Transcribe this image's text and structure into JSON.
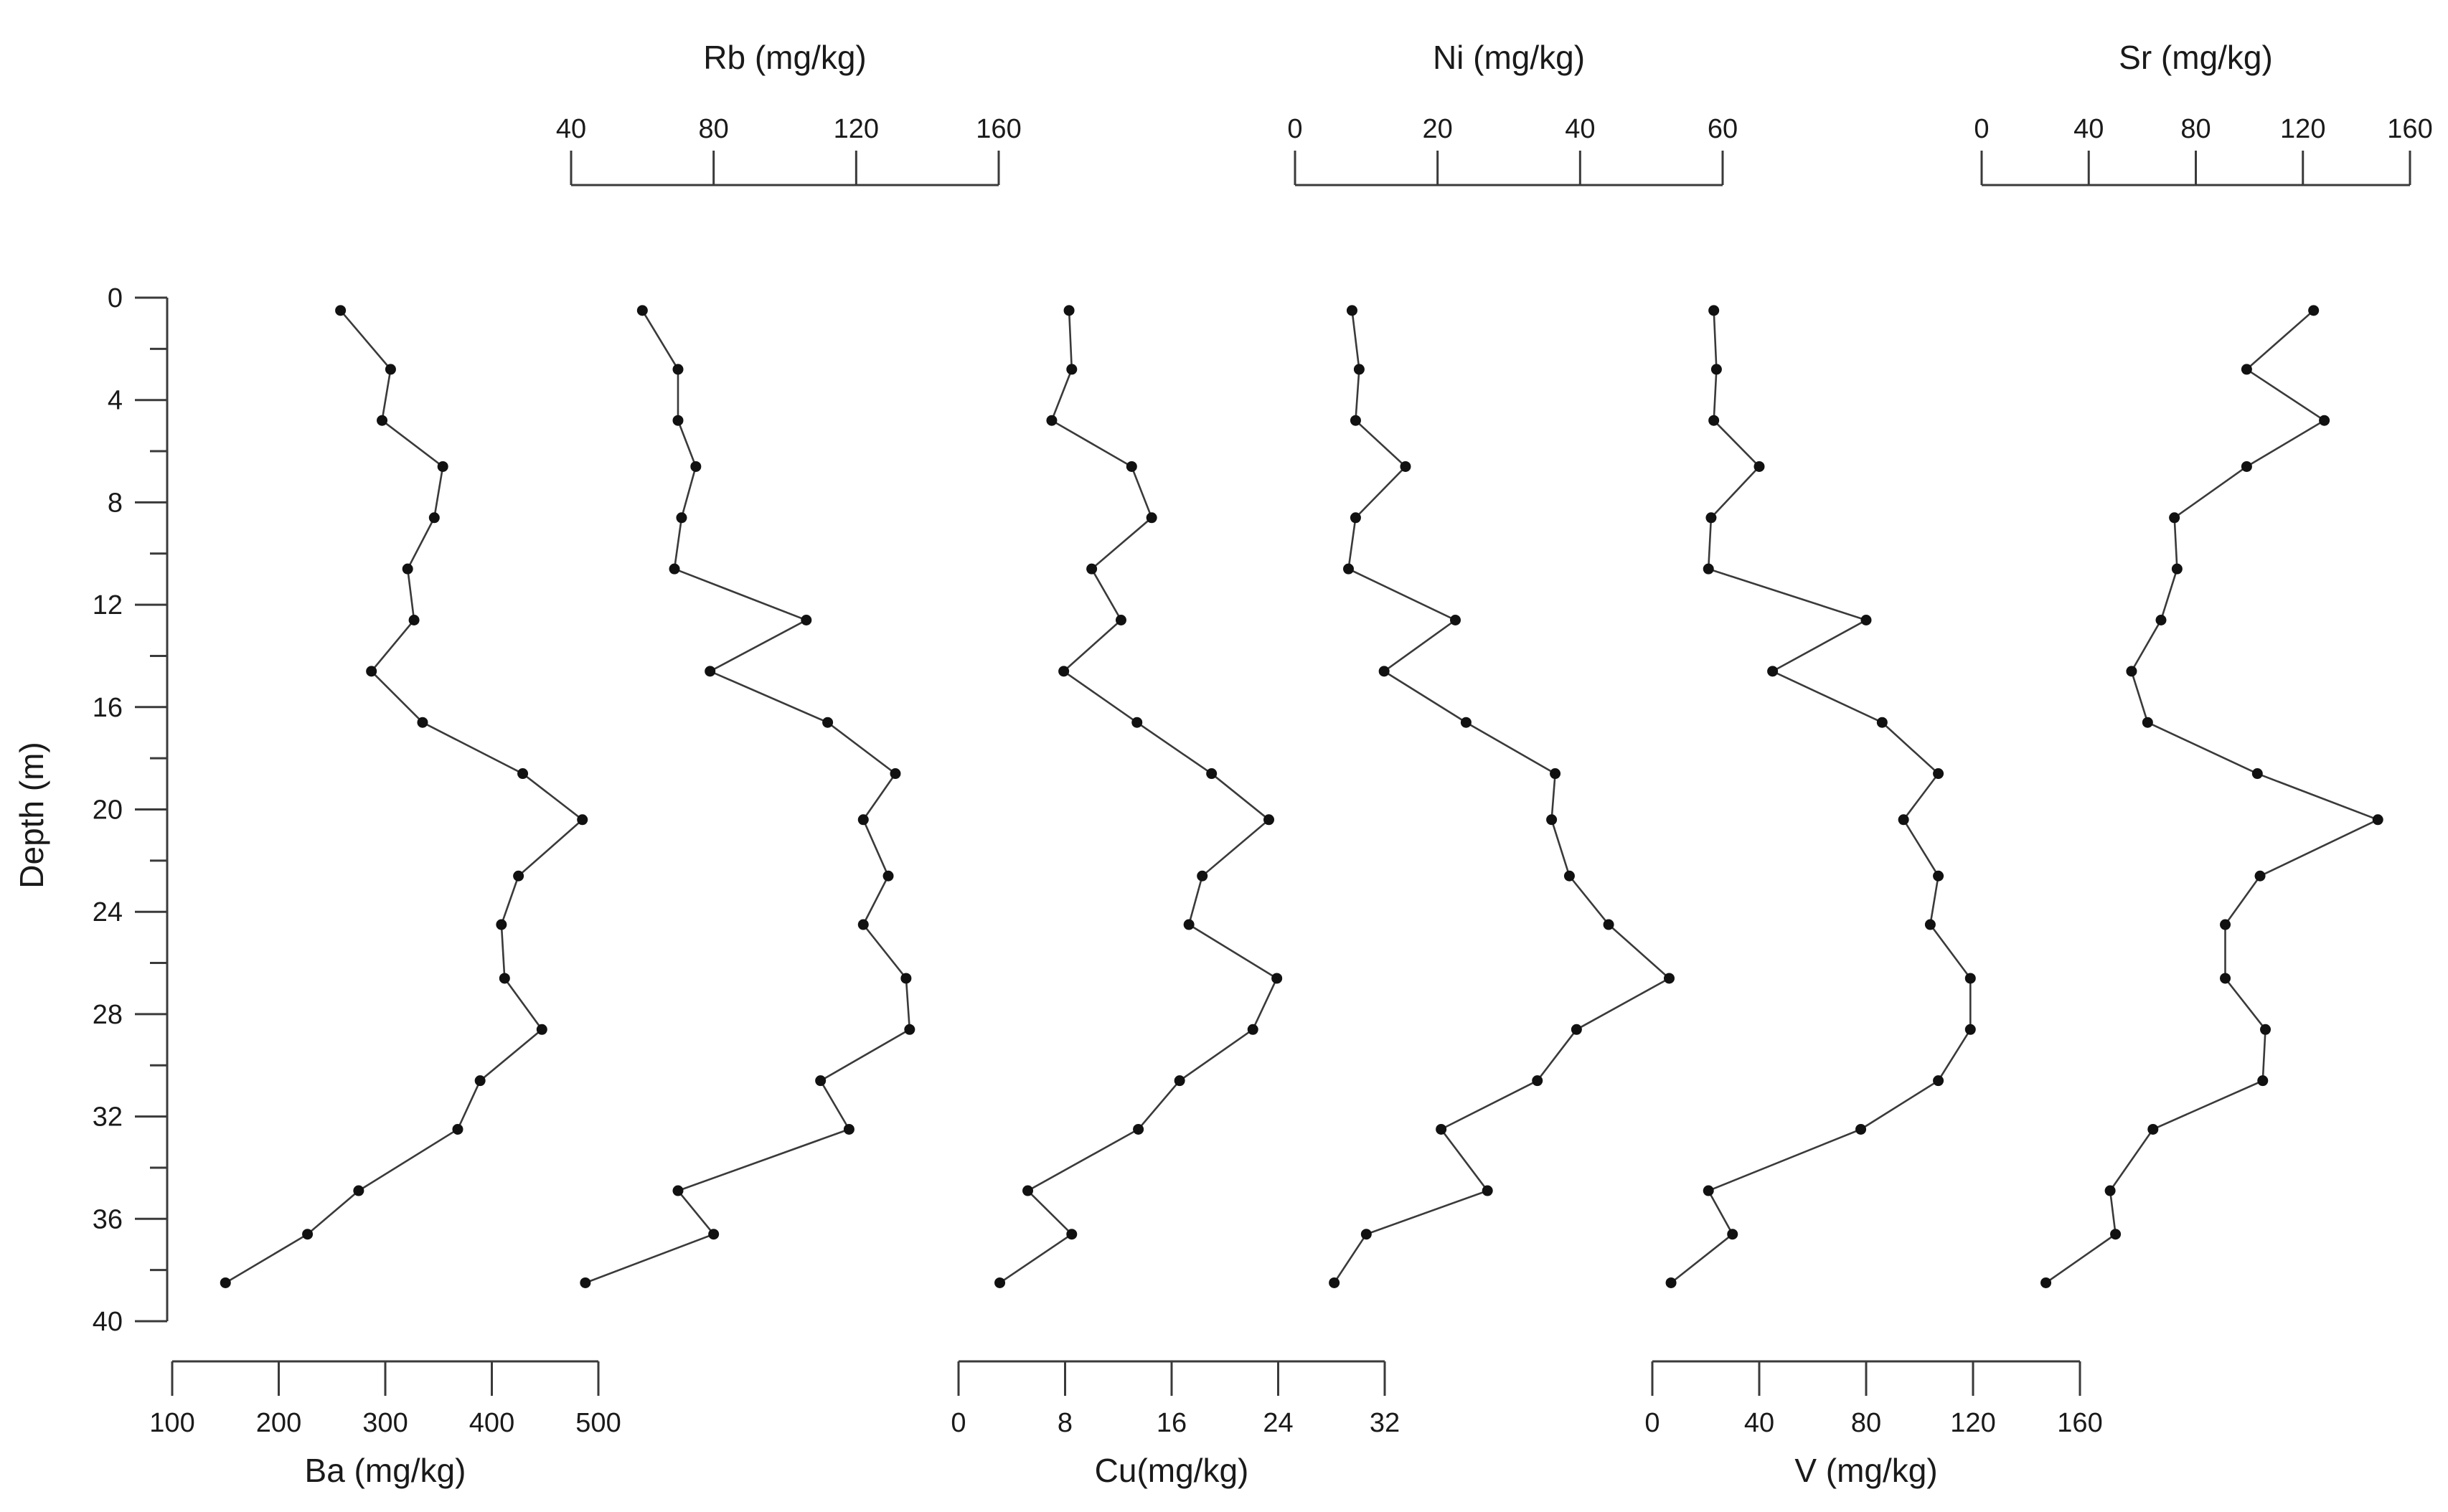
{
  "chart_data": {
    "type": "line",
    "depth_axis": {
      "label": "Depth (m)",
      "range": [
        0,
        40
      ],
      "ticks": [
        0,
        4,
        8,
        12,
        16,
        20,
        24,
        28,
        32,
        36,
        40
      ],
      "inverted": true
    },
    "depths": [
      0.5,
      2.8,
      4.8,
      6.6,
      8.6,
      10.6,
      12.6,
      14.6,
      16.6,
      18.6,
      20.4,
      22.6,
      24.5,
      26.6,
      28.6,
      30.6,
      32.5,
      34.9,
      36.6,
      38.5
    ],
    "panels": [
      {
        "name": "Ba",
        "label": "Ba (mg/kg)",
        "axis_position": "bottom",
        "range": [
          100,
          500
        ],
        "ticks": [
          100,
          200,
          300,
          400,
          500
        ],
        "values": [
          258,
          305,
          297,
          354,
          346,
          321,
          327,
          287,
          335,
          429,
          485,
          425,
          409,
          412,
          447,
          389,
          368,
          275,
          227,
          150
        ]
      },
      {
        "name": "Rb",
        "label": "Rb (mg/kg)",
        "axis_position": "top",
        "range": [
          40,
          160
        ],
        "ticks": [
          40,
          80,
          120,
          160
        ],
        "values": [
          60,
          70,
          70,
          75,
          71,
          69,
          106,
          79,
          112,
          131,
          122,
          129,
          122,
          134,
          135,
          110,
          118,
          70,
          80,
          44
        ]
      },
      {
        "name": "Cu",
        "label": "Cu(mg/kg)",
        "axis_position": "bottom",
        "range": [
          0,
          32
        ],
        "ticks": [
          0,
          8,
          16,
          24,
          32
        ],
        "values": [
          8.3,
          8.5,
          7.0,
          13.0,
          14.5,
          10.0,
          12.2,
          7.9,
          13.4,
          19.0,
          23.3,
          18.3,
          17.3,
          23.9,
          22.1,
          16.6,
          13.5,
          5.2,
          8.5,
          3.1
        ]
      },
      {
        "name": "Ni",
        "label": "Ni (mg/kg)",
        "axis_position": "top",
        "range": [
          0,
          60
        ],
        "ticks": [
          0,
          20,
          40,
          60
        ],
        "values": [
          8,
          9,
          8.5,
          15.5,
          8.5,
          7.5,
          22.5,
          12.5,
          24,
          36.5,
          36,
          38.5,
          44,
          52.5,
          39.5,
          34,
          20.5,
          27,
          10,
          5.5
        ]
      },
      {
        "name": "V",
        "label": "V (mg/kg)",
        "axis_position": "bottom",
        "range": [
          0,
          160
        ],
        "ticks": [
          0,
          40,
          80,
          120,
          160
        ],
        "values": [
          23,
          24,
          23,
          40,
          22,
          21,
          80,
          45,
          86,
          107,
          94,
          107,
          104,
          119,
          119,
          107,
          78,
          21,
          30,
          7
        ]
      },
      {
        "name": "Sr",
        "label": "Sr (mg/kg)",
        "axis_position": "top",
        "range": [
          0,
          160
        ],
        "ticks": [
          0,
          40,
          80,
          120,
          160
        ],
        "values": [
          124,
          99,
          128,
          99,
          72,
          73,
          67,
          56,
          62,
          103,
          148,
          104,
          91,
          91,
          106,
          105,
          64,
          48,
          50,
          24
        ]
      }
    ]
  }
}
